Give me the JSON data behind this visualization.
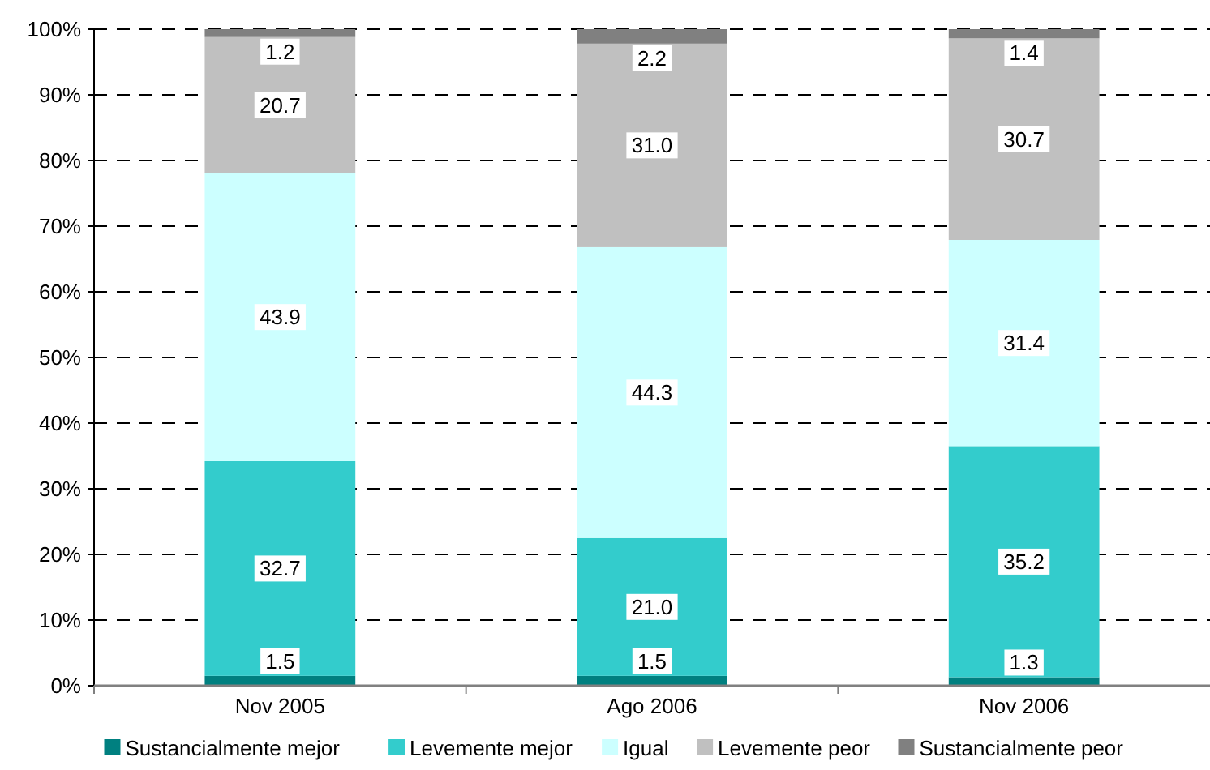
{
  "chart_data": {
    "type": "bar",
    "stacked": true,
    "categories": [
      "Nov 2005",
      "Ago 2006",
      "Nov 2006"
    ],
    "series": [
      {
        "name": "Sustancialmente mejor",
        "color": "#008080",
        "values": [
          1.5,
          1.5,
          1.3
        ],
        "value_labels": [
          "1.5",
          "1.5",
          "1.3"
        ]
      },
      {
        "name": "Levemente mejor",
        "color": "#33cccc",
        "values": [
          32.7,
          21.0,
          35.2
        ],
        "value_labels": [
          "32.7",
          "21.0",
          "35.2"
        ]
      },
      {
        "name": "Igual",
        "color": "#ccffff",
        "values": [
          43.9,
          44.3,
          31.4
        ],
        "value_labels": [
          "43.9",
          "44.3",
          "31.4"
        ]
      },
      {
        "name": "Levemente peor",
        "color": "#c0c0c0",
        "values": [
          20.7,
          31.0,
          30.7
        ],
        "value_labels": [
          "20.7",
          "31.0",
          "30.7"
        ]
      },
      {
        "name": "Sustancialmente peor",
        "color": "#808080",
        "values": [
          1.2,
          2.2,
          1.4
        ],
        "value_labels": [
          "1.2",
          "2.2",
          "1.4"
        ]
      }
    ],
    "ylim": [
      0,
      100
    ],
    "yticks": [
      {
        "value": 0,
        "label": "0%"
      },
      {
        "value": 10,
        "label": "10%"
      },
      {
        "value": 20,
        "label": "20%"
      },
      {
        "value": 30,
        "label": "30%"
      },
      {
        "value": 40,
        "label": "40%"
      },
      {
        "value": 50,
        "label": "50%"
      },
      {
        "value": 60,
        "label": "60%"
      },
      {
        "value": 70,
        "label": "70%"
      },
      {
        "value": 80,
        "label": "80%"
      },
      {
        "value": 90,
        "label": "90%"
      },
      {
        "value": 100,
        "label": "100%"
      }
    ],
    "grid": "y",
    "legend": "bottom"
  }
}
